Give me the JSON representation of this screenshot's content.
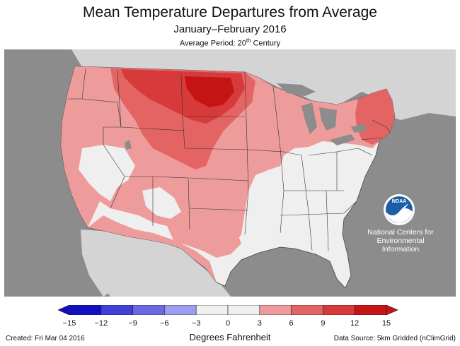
{
  "header": {
    "title": "Mean Temperature Departures from Average",
    "subtitle": "January–February 2016",
    "period_prefix": "Average Period: 20",
    "period_sup": "th",
    "period_suffix": " Century"
  },
  "logo": {
    "text": "NOAA",
    "caption_lines": [
      "National Centers for",
      "Environmental",
      "Information"
    ]
  },
  "legend": {
    "ticks": [
      "−15",
      "−12",
      "−9",
      "−6",
      "−3",
      "0",
      "3",
      "6",
      "9",
      "12",
      "15"
    ],
    "units": "Degrees Fahrenheit",
    "colors": [
      "#1010c0",
      "#4040d8",
      "#6a6ae4",
      "#9c9cf0",
      "#efefef",
      "#efefef",
      "#ee9b9b",
      "#e46464",
      "#d63a3a",
      "#c41414"
    ]
  },
  "footer": {
    "created": "Created: Fri Mar 04 2016",
    "source": "Data Source: 5km Gridded (nClimGrid)"
  },
  "colors": {
    "ocean": "#8c8c8c",
    "land_other": "#d4d4d4",
    "near_normal": "#efefef",
    "warm_3_6": "#ee9b9b",
    "warm_6_9": "#e46464",
    "warm_9_12": "#d63a3a",
    "warm_12_15": "#c41414"
  }
}
